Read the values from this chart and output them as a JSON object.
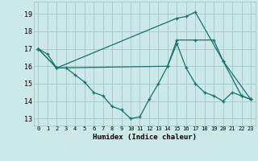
{
  "xlabel": "Humidex (Indice chaleur)",
  "xlim": [
    -0.5,
    23.5
  ],
  "ylim": [
    12.6,
    19.7
  ],
  "yticks": [
    13,
    14,
    15,
    16,
    17,
    18,
    19
  ],
  "xticks": [
    0,
    1,
    2,
    3,
    4,
    5,
    6,
    7,
    8,
    9,
    10,
    11,
    12,
    13,
    14,
    15,
    16,
    17,
    18,
    19,
    20,
    21,
    22,
    23
  ],
  "bg_color": "#cce8e8",
  "grid_color": "#aacccc",
  "line_color": "#1a6e6e",
  "line1_x": [
    0,
    1,
    2,
    3,
    4,
    5,
    6,
    7,
    8,
    9,
    10,
    11,
    12,
    13,
    14,
    15,
    16,
    17,
    18,
    19,
    20,
    21,
    22,
    23
  ],
  "line1_y": [
    17.0,
    16.7,
    15.9,
    15.9,
    15.5,
    15.1,
    14.5,
    14.3,
    13.7,
    13.5,
    13.0,
    13.1,
    14.1,
    15.0,
    16.0,
    17.3,
    15.9,
    15.0,
    14.5,
    14.3,
    14.0,
    14.5,
    14.3,
    14.1
  ],
  "line2_x": [
    0,
    2,
    15,
    16,
    17,
    20,
    22,
    23
  ],
  "line2_y": [
    17.0,
    15.9,
    18.75,
    18.85,
    19.1,
    16.3,
    14.3,
    14.1
  ],
  "line3_x": [
    0,
    2,
    14,
    15,
    17,
    19,
    20,
    23
  ],
  "line3_y": [
    17.0,
    15.9,
    16.0,
    17.5,
    17.5,
    17.5,
    16.3,
    14.1
  ]
}
